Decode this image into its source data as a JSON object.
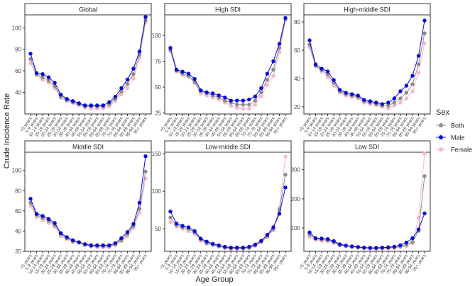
{
  "chart_data": {
    "type": "line",
    "ylabel": "Crude Incidence Rate",
    "xlabel": "Age Group",
    "categories": [
      "<5 years",
      "5-9 years",
      "10-14 years",
      "15-19 years",
      "20-24 years",
      "25-29 years",
      "30-34 years",
      "35-39 years",
      "40-44 years",
      "45-49 years",
      "50-54 years",
      "55-59 years",
      "60-64 years",
      "65-69 years",
      "70-74 years",
      "75-79 years",
      "80-84 years",
      "85-89 years",
      "90-94 years",
      "95+ years"
    ],
    "legend": {
      "title": "Sex",
      "position": "right",
      "entries": [
        {
          "name": "Both",
          "color": "#8c8c8c"
        },
        {
          "name": "Male",
          "color": "#0a0ad6"
        },
        {
          "name": "Female",
          "color": "#f4b8c8"
        }
      ]
    },
    "panels": [
      {
        "title": "Global",
        "ylim": [
          20,
          112
        ],
        "yticks": [
          40,
          60,
          80,
          100
        ],
        "series": [
          {
            "name": "Both",
            "values": [
              71,
              57,
              54,
              51,
              46,
              36,
              33,
              31,
              29,
              27,
              27,
              27,
              27,
              29,
              34,
              41,
              48,
              57,
              75,
              107
            ]
          },
          {
            "name": "Male",
            "values": [
              76,
              58,
              57,
              54,
              49,
              38,
              34,
              32,
              30,
              28,
              28,
              28,
              28,
              31,
              36,
              44,
              52,
              62,
              78,
              110
            ]
          },
          {
            "name": "Female",
            "values": [
              67,
              56,
              52,
              49,
              44,
              35,
              32,
              30,
              28,
              26,
              25,
              25,
              25,
              27,
              32,
              38,
              44,
              53,
              72,
              105
            ]
          }
        ]
      },
      {
        "title": "High SDI",
        "ylim": [
          24,
          120
        ],
        "yticks": [
          25,
          50,
          75,
          100
        ],
        "series": [
          {
            "name": "Both",
            "values": [
              86,
              66,
              63,
              61,
              55,
              46,
              44,
              42,
              40,
              37,
              35,
              33,
              33,
              33,
              37,
              45,
              57,
              67,
              88,
              116
            ]
          },
          {
            "name": "Male",
            "values": [
              88,
              67,
              65,
              63,
              58,
              47,
              45,
              44,
              42,
              40,
              37,
              37,
              37,
              38,
              41,
              49,
              63,
              75,
              92,
              117
            ]
          },
          {
            "name": "Female",
            "values": [
              85,
              65,
              62,
              60,
              54,
              44,
              42,
              40,
              38,
              35,
              32,
              30,
              29,
              29,
              33,
              41,
              52,
              61,
              84,
              115
            ]
          }
        ]
      },
      {
        "title": "High-middle SDI",
        "ylim": [
          15,
          85
        ],
        "yticks": [
          20,
          40,
          60,
          80
        ],
        "series": [
          {
            "name": "Both",
            "values": [
              64,
              49,
              46,
              43,
              37,
              31,
              29,
              28,
              27,
              24,
              23,
              22,
              21,
              21,
              23,
              26,
              30,
              36,
              50,
              72
            ]
          },
          {
            "name": "Male",
            "values": [
              67,
              50,
              47,
              45,
              39,
              32,
              30,
              29,
              28,
              25,
              24,
              23,
              22,
              23,
              26,
              31,
              35,
              42,
              56,
              81
            ]
          },
          {
            "name": "Female",
            "values": [
              62,
              49,
              45,
              41,
              35,
              30,
              28,
              27,
              26,
              23,
              22,
              21,
              20,
              19,
              21,
              23,
              26,
              31,
              44,
              65
            ]
          }
        ]
      },
      {
        "title": "Middle SDI",
        "ylim": [
          20,
          118
        ],
        "yticks": [
          20,
          40,
          60,
          80,
          100
        ],
        "series": [
          {
            "name": "Both",
            "values": [
              68,
              56,
              53,
              50,
              46,
              37,
              33,
              30,
              29,
              27,
              25,
              25,
              25,
              25,
              27,
              31,
              37,
              45,
              62,
              99
            ]
          },
          {
            "name": "Male",
            "values": [
              72,
              57,
              55,
              52,
              48,
              38,
              34,
              31,
              29,
              27,
              26,
              26,
              26,
              26,
              28,
              33,
              39,
              47,
              68,
              114
            ]
          },
          {
            "name": "Female",
            "values": [
              65,
              54,
              51,
              48,
              44,
              35,
              32,
              29,
              28,
              26,
              25,
              24,
              24,
              24,
              26,
              30,
              35,
              43,
              58,
              92
            ]
          }
        ]
      },
      {
        "title": "Low-middle SDI",
        "ylim": [
          20,
          152
        ],
        "yticks": [
          50,
          100,
          150
        ],
        "series": [
          {
            "name": "Both",
            "values": [
              65,
              55,
              52,
              50,
              45,
              36,
              31,
              29,
              27,
              25,
              24,
              24,
              24,
              25,
              28,
              33,
              40,
              50,
              75,
              122
            ]
          },
          {
            "name": "Male",
            "values": [
              73,
              57,
              54,
              52,
              47,
              37,
              33,
              30,
              28,
              26,
              25,
              25,
              25,
              26,
              29,
              34,
              42,
              52,
              70,
              105
            ]
          },
          {
            "name": "Female",
            "values": [
              59,
              53,
              50,
              47,
              43,
              34,
              30,
              28,
              26,
              24,
              23,
              23,
              23,
              24,
              27,
              32,
              39,
              48,
              78,
              146
            ]
          }
        ]
      },
      {
        "title": "Low SDI",
        "ylim": [
          20,
          360
        ],
        "yticks": [
          100,
          200,
          300
        ],
        "series": [
          {
            "name": "Both",
            "values": [
              77,
              63,
              60,
              58,
              52,
              42,
              39,
              36,
              34,
              32,
              31,
              30,
              31,
              32,
              33,
              37,
              43,
              52,
              90,
              278
            ]
          },
          {
            "name": "Male",
            "values": [
              85,
              65,
              64,
              62,
              55,
              44,
              40,
              37,
              35,
              33,
              32,
              32,
              33,
              34,
              36,
              41,
              50,
              65,
              95,
              150
            ]
          },
          {
            "name": "Female",
            "values": [
              70,
              60,
              56,
              54,
              48,
              40,
              37,
              34,
              32,
              30,
              29,
              29,
              29,
              30,
              31,
              34,
              38,
              48,
              135,
              355
            ]
          }
        ]
      }
    ]
  }
}
